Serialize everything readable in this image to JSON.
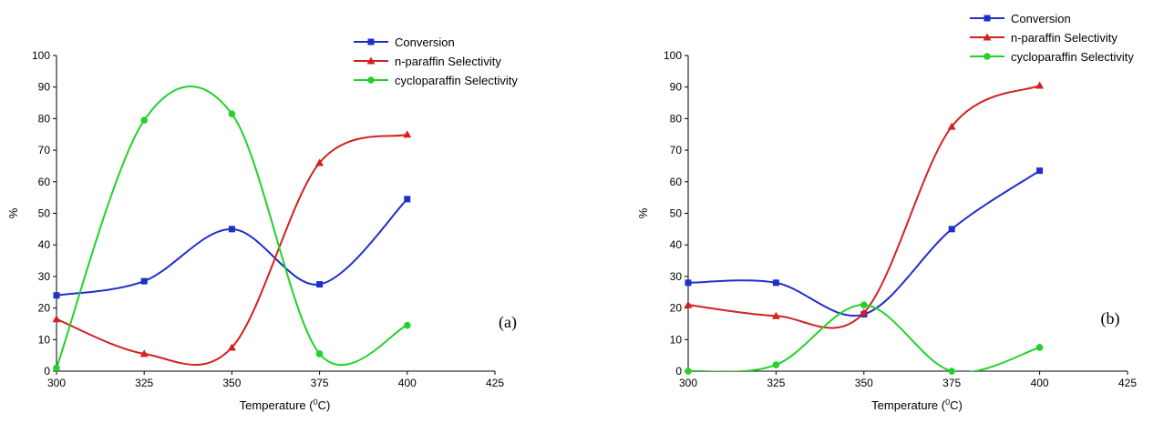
{
  "chart_data": [
    {
      "type": "line",
      "panel_label": "(a)",
      "xlabel": "Temperature (",
      "xlabel_sup": "0",
      "xlabel_end": "C)",
      "ylabel": "%",
      "xlim": [
        300,
        425
      ],
      "ylim": [
        0,
        100
      ],
      "xticks": [
        "300",
        "325",
        "350",
        "375",
        "400",
        "425"
      ],
      "yticks": [
        "0",
        "10",
        "20",
        "30",
        "40",
        "50",
        "60",
        "70",
        "80",
        "90",
        "100"
      ],
      "x": [
        300,
        325,
        350,
        375,
        400
      ],
      "legend_position": "top-right",
      "series": [
        {
          "name": "Conversion",
          "values": [
            24,
            28.5,
            45,
            27.5,
            54.5
          ],
          "color": "#1f2fc8",
          "marker": "square"
        },
        {
          "name": "n-paraffin Selectivity",
          "values": [
            16.5,
            5.5,
            7.5,
            66,
            75
          ],
          "color": "#d42020",
          "marker": "triangle"
        },
        {
          "name": "cycloparaffin Selectivity",
          "values": [
            1,
            79.5,
            81.5,
            5.5,
            14.5
          ],
          "color": "#22d22a",
          "marker": "circle"
        }
      ]
    },
    {
      "type": "line",
      "panel_label": "(b)",
      "xlabel": "Temperature (",
      "xlabel_sup": "0",
      "xlabel_end": "C)",
      "ylabel": "%",
      "xlim": [
        300,
        425
      ],
      "ylim": [
        0,
        100
      ],
      "xticks": [
        "300",
        "325",
        "350",
        "375",
        "400",
        "425"
      ],
      "yticks": [
        "0",
        "10",
        "20",
        "30",
        "40",
        "50",
        "60",
        "70",
        "80",
        "90",
        "100"
      ],
      "x": [
        300,
        325,
        350,
        375,
        400
      ],
      "legend_position": "top-right",
      "series": [
        {
          "name": "Conversion",
          "values": [
            28,
            28,
            18,
            45,
            63.5
          ],
          "color": "#1f2fc8",
          "marker": "square"
        },
        {
          "name": "n-paraffin Selectivity",
          "values": [
            21,
            17.5,
            18.5,
            77.5,
            90.5
          ],
          "color": "#d42020",
          "marker": "triangle"
        },
        {
          "name": "cycloparaffin Selectivity",
          "values": [
            0,
            2,
            21,
            0,
            7.5
          ],
          "color": "#22d22a",
          "marker": "circle"
        }
      ]
    }
  ]
}
